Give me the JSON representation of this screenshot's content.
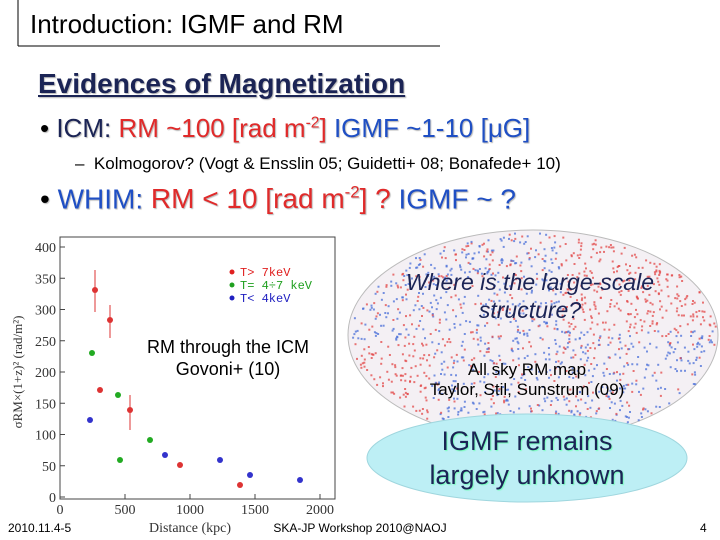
{
  "title": "Introduction: IGMF and RM",
  "heading": "Evidences of Magnetization",
  "bullets": [
    {
      "label": "ICM:",
      "rm": "RM ~100 [rad m",
      "rm_sup": "-2",
      "rm_end": "]",
      "igmf": "IGMF ~1-10 [μG]",
      "sub": "Kolmogorov? (Vogt & Ensslin 05; Guidetti+ 08; Bonafede+ 10)"
    },
    {
      "label": "WHIM:",
      "rm": "RM < 10 [rad m",
      "rm_sup": "-2",
      "rm_end": "] ?",
      "igmf": "IGMF ~ ?"
    }
  ],
  "plot": {
    "yticks": [
      400,
      350,
      300,
      250,
      200,
      150,
      100,
      50,
      0
    ],
    "xticks": [
      0,
      500,
      1000,
      1500,
      2000
    ],
    "xlabel": "Distance (kpc)",
    "ylabel": "σRM×(1+z)² (rad/m²)",
    "legend": [
      "T> 7keV",
      "T= 4÷7 keV",
      "T< 4keV"
    ],
    "caption": [
      "RM through the ICM",
      "Govoni+ (10)"
    ]
  },
  "map": {
    "question": [
      "Where is the large-scale",
      "structure?"
    ],
    "caption": [
      "All sky RM map",
      "Taylor, Stil, Sunstrum (09)"
    ]
  },
  "callout": [
    "IGMF remains",
    "largely unknown"
  ],
  "footer": {
    "date": "2010.11.4-5",
    "event": "SKA-JP Workshop 2010@NAOJ",
    "page": "4"
  }
}
